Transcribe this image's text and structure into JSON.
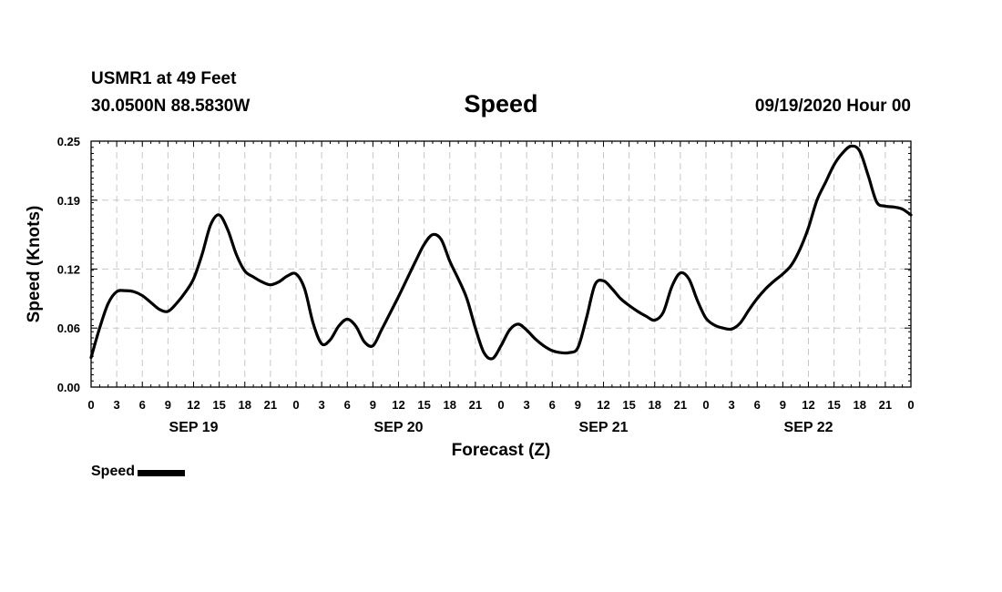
{
  "header": {
    "station": "USMR1 at 49 Feet",
    "coords": "30.0500N 88.5830W",
    "title": "Speed",
    "datetime": "09/19/2020 Hour 00"
  },
  "legend": {
    "label": "Speed"
  },
  "chart_data": {
    "type": "line",
    "title": "Speed",
    "xlabel": "Forecast (Z)",
    "ylabel": "Speed (Knots)",
    "xlim": [
      0,
      96
    ],
    "ylim": [
      0,
      0.25
    ],
    "grid": true,
    "y_ticks": [
      0.0,
      0.06,
      0.12,
      0.19,
      0.25
    ],
    "y_tick_labels": [
      "0.00",
      "0.06",
      "0.12",
      "0.19",
      "0.25"
    ],
    "x_ticks": [
      0,
      3,
      6,
      9,
      12,
      15,
      18,
      21,
      24,
      27,
      30,
      33,
      36,
      39,
      42,
      45,
      48,
      51,
      54,
      57,
      60,
      63,
      66,
      69,
      72,
      75,
      78,
      81,
      84,
      87,
      90,
      93,
      96
    ],
    "x_tick_labels": [
      "0",
      "3",
      "6",
      "9",
      "12",
      "15",
      "18",
      "21",
      "0",
      "3",
      "6",
      "9",
      "12",
      "15",
      "18",
      "21",
      "0",
      "3",
      "6",
      "9",
      "12",
      "15",
      "18",
      "21",
      "0",
      "3",
      "6",
      "9",
      "12",
      "15",
      "18",
      "21",
      "0"
    ],
    "day_labels": [
      {
        "hour": 12,
        "label": "SEP 19"
      },
      {
        "hour": 36,
        "label": "SEP 20"
      },
      {
        "hour": 60,
        "label": "SEP 21"
      },
      {
        "hour": 84,
        "label": "SEP 22"
      }
    ],
    "series": [
      {
        "name": "Speed",
        "color": "#000000",
        "x": [
          0,
          1,
          2,
          3,
          4,
          5,
          6,
          7,
          8,
          9,
          10,
          11,
          12,
          13,
          14,
          15,
          16,
          17,
          18,
          19,
          20,
          21,
          22,
          23,
          24,
          25,
          26,
          27,
          28,
          29,
          30,
          31,
          32,
          33,
          34,
          35,
          36,
          37,
          38,
          39,
          40,
          41,
          42,
          43,
          44,
          45,
          46,
          47,
          48,
          49,
          50,
          51,
          52,
          53,
          54,
          55,
          56,
          57,
          58,
          59,
          60,
          61,
          62,
          63,
          64,
          65,
          66,
          67,
          68,
          69,
          70,
          71,
          72,
          73,
          74,
          75,
          76,
          77,
          78,
          79,
          80,
          81,
          82,
          83,
          84,
          85,
          86,
          87,
          88,
          89,
          90,
          91,
          92,
          93,
          94,
          95,
          96
        ],
        "values": [
          0.03,
          0.06,
          0.085,
          0.097,
          0.098,
          0.097,
          0.093,
          0.086,
          0.079,
          0.077,
          0.085,
          0.096,
          0.11,
          0.135,
          0.165,
          0.175,
          0.16,
          0.135,
          0.118,
          0.112,
          0.107,
          0.104,
          0.107,
          0.113,
          0.115,
          0.1,
          0.065,
          0.044,
          0.048,
          0.062,
          0.069,
          0.062,
          0.046,
          0.042,
          0.058,
          0.075,
          0.092,
          0.11,
          0.128,
          0.145,
          0.155,
          0.15,
          0.128,
          0.11,
          0.09,
          0.06,
          0.035,
          0.029,
          0.042,
          0.058,
          0.064,
          0.058,
          0.049,
          0.042,
          0.037,
          0.035,
          0.035,
          0.04,
          0.07,
          0.104,
          0.108,
          0.1,
          0.09,
          0.083,
          0.077,
          0.072,
          0.068,
          0.076,
          0.102,
          0.116,
          0.11,
          0.088,
          0.07,
          0.063,
          0.06,
          0.059,
          0.065,
          0.078,
          0.09,
          0.1,
          0.108,
          0.115,
          0.124,
          0.14,
          0.162,
          0.19,
          0.208,
          0.226,
          0.238,
          0.245,
          0.24,
          0.215,
          0.188,
          0.184,
          0.183,
          0.181,
          0.175
        ]
      }
    ]
  }
}
